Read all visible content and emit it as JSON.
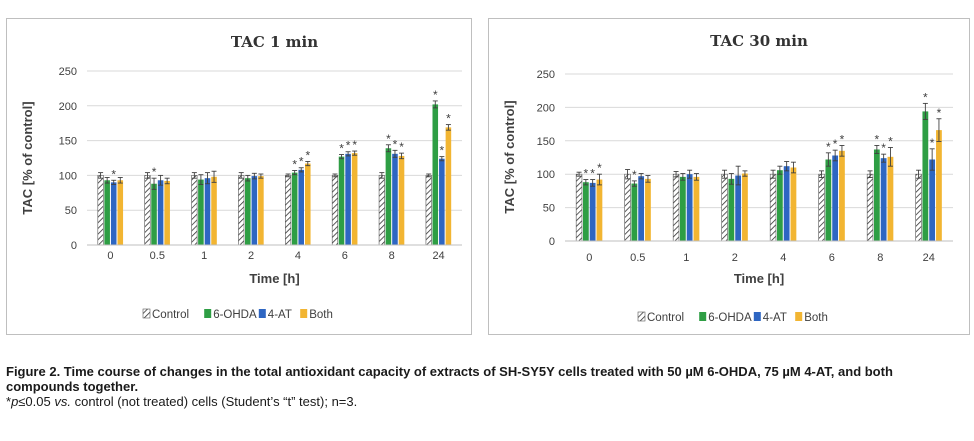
{
  "chart_data": [
    {
      "type": "bar",
      "title": "TAC 1 min",
      "xlabel": "Time [h]",
      "ylabel": "TAC [% of control]",
      "ylim": [
        0,
        250
      ],
      "yticks": [
        "0",
        "50",
        "100",
        "150",
        "200",
        "250"
      ],
      "categories": [
        "0",
        "0.5",
        "1",
        "2",
        "4",
        "6",
        "8",
        "24"
      ],
      "grid": true,
      "legend_position": "bottom",
      "series": [
        {
          "name": "Control",
          "color": "#ffffff",
          "pattern": "hatched",
          "values": [
            100,
            100,
            100,
            100,
            100,
            100,
            100,
            100
          ],
          "errors": [
            4,
            4,
            4,
            4,
            2,
            2,
            4,
            2
          ],
          "significant": [
            false,
            false,
            false,
            false,
            false,
            false,
            false,
            false
          ]
        },
        {
          "name": "6-OHDA",
          "color": "#2e9e44",
          "values": [
            93,
            88,
            94,
            96,
            104,
            127,
            139,
            202
          ],
          "errors": [
            4,
            8,
            7,
            4,
            3,
            3,
            5,
            5
          ],
          "significant": [
            false,
            true,
            false,
            false,
            true,
            true,
            true,
            true
          ]
        },
        {
          "name": "4-AT",
          "color": "#2e66c2",
          "values": [
            90,
            93,
            96,
            99,
            108,
            131,
            131,
            124
          ],
          "errors": [
            3,
            7,
            8,
            4,
            3,
            3,
            5,
            3
          ],
          "significant": [
            true,
            false,
            false,
            false,
            true,
            true,
            true,
            true
          ]
        },
        {
          "name": "Both",
          "color": "#f2b532",
          "values": [
            93,
            92,
            98,
            99,
            117,
            132,
            128,
            169
          ],
          "errors": [
            4,
            4,
            8,
            3,
            3,
            3,
            4,
            4
          ],
          "significant": [
            false,
            false,
            false,
            false,
            true,
            true,
            true,
            true
          ]
        }
      ]
    },
    {
      "type": "bar",
      "title": "TAC 30 min",
      "xlabel": "Time [h]",
      "ylabel": "TAC [% of control]",
      "ylim": [
        0,
        250
      ],
      "yticks": [
        "0",
        "50",
        "100",
        "150",
        "200",
        "250"
      ],
      "categories": [
        "0",
        "0.5",
        "1",
        "2",
        "4",
        "6",
        "8",
        "24"
      ],
      "grid": true,
      "legend_position": "bottom",
      "series": [
        {
          "name": "Control",
          "color": "#ffffff",
          "pattern": "hatched",
          "values": [
            100,
            100,
            100,
            100,
            100,
            100,
            100,
            100
          ],
          "errors": [
            3,
            7,
            4,
            6,
            6,
            5,
            5,
            6
          ],
          "significant": [
            false,
            false,
            false,
            false,
            false,
            false,
            false,
            false
          ]
        },
        {
          "name": "6-OHDA",
          "color": "#2e9e44",
          "values": [
            88,
            86,
            96,
            93,
            106,
            122,
            137,
            194
          ],
          "errors": [
            4,
            4,
            5,
            8,
            6,
            10,
            6,
            12
          ],
          "significant": [
            true,
            true,
            false,
            false,
            false,
            true,
            true,
            true
          ]
        },
        {
          "name": "4-AT",
          "color": "#2e66c2",
          "values": [
            87,
            97,
            100,
            98,
            112,
            128,
            124,
            122
          ],
          "errors": [
            5,
            4,
            6,
            14,
            7,
            8,
            6,
            16
          ],
          "significant": [
            true,
            false,
            false,
            false,
            false,
            true,
            true,
            true
          ]
        },
        {
          "name": "Both",
          "color": "#f2b532",
          "values": [
            92,
            93,
            96,
            101,
            110,
            135,
            126,
            166
          ],
          "errors": [
            8,
            5,
            5,
            4,
            8,
            8,
            14,
            17
          ],
          "significant": [
            true,
            false,
            false,
            false,
            false,
            true,
            true,
            true
          ]
        }
      ]
    }
  ],
  "significance_marker": "*",
  "caption": {
    "line1": "Figure 2. Time course of changes in the total antioxidant capacity of extracts of SH-SY5Y cells treated with 50 µM 6-OHDA, 75 µM 4-AT, and both compounds together.",
    "footnote_star": "*",
    "footnote_p": "p",
    "footnote_le": "≤0.05 ",
    "footnote_vs": "vs.",
    "footnote_rest": " control (not treated) cells (Student’s “t” test); n=3."
  }
}
